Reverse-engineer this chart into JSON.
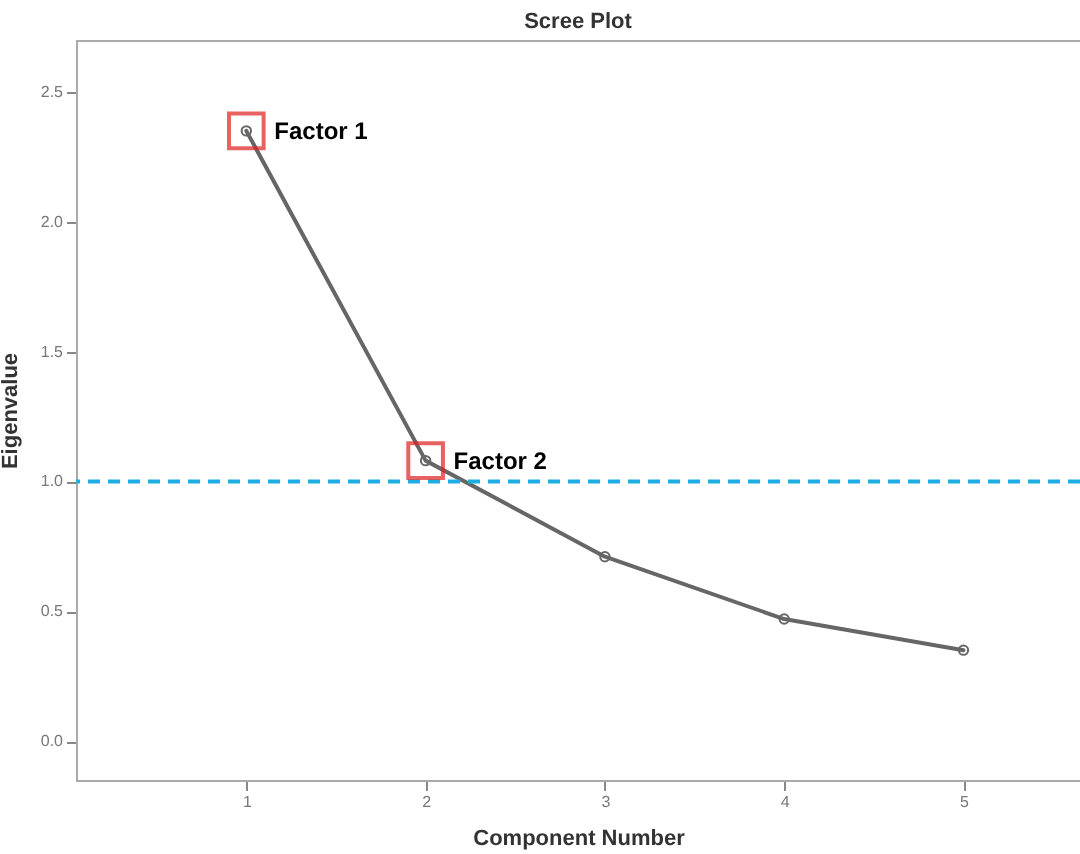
{
  "chart_data": {
    "type": "line",
    "title": "Scree Plot",
    "xlabel": "Component Number",
    "ylabel": "Eigenvalue",
    "x": [
      1,
      2,
      3,
      4,
      5
    ],
    "series": [
      {
        "color": "#666666",
        "values": [
          2.35,
          1.08,
          0.71,
          0.47,
          0.35
        ]
      }
    ],
    "xlim": [
      0.05,
      5.65
    ],
    "xticks": [
      1,
      2,
      3,
      4,
      5
    ],
    "ylim": [
      -0.15,
      2.7
    ],
    "yticks": [
      {
        "value": 0,
        "label": "0.0"
      },
      {
        "value": 0.5,
        "label": "0.5"
      },
      {
        "value": 1,
        "label": "1.0"
      },
      {
        "value": 1.5,
        "label": "1.5"
      },
      {
        "value": 2,
        "label": "2.0"
      },
      {
        "value": 2.5,
        "label": "2.5"
      }
    ],
    "ref_lines": [
      {
        "axis": "y",
        "value": 1.0,
        "color": "#1eaee6",
        "line_style": "dashed"
      }
    ],
    "annotations": [
      {
        "text": "Factor 1",
        "x": 1,
        "y": 2.35
      },
      {
        "text": "Factor 2",
        "x": 2,
        "y": 1.08
      }
    ],
    "marker": "circle",
    "grid": false
  }
}
